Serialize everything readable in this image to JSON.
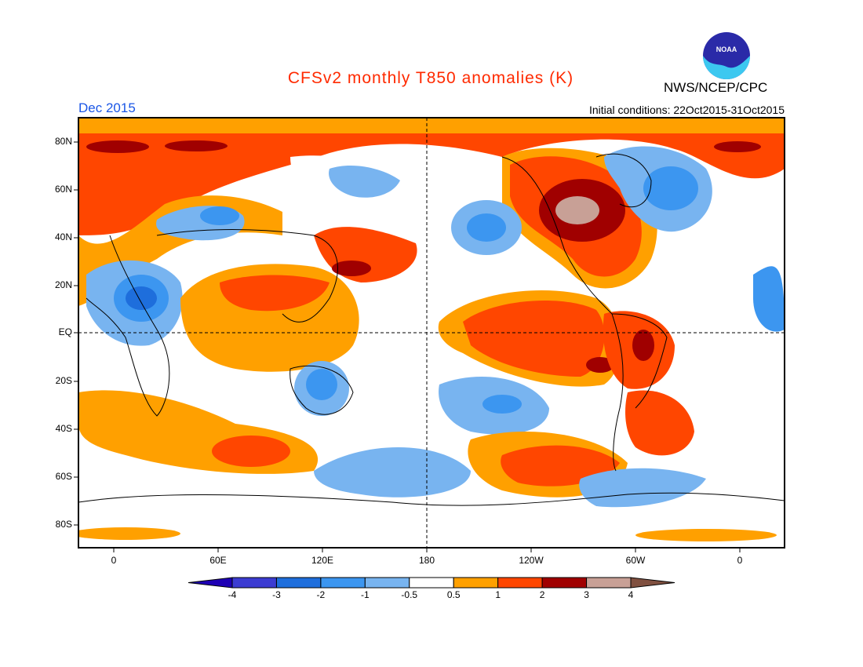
{
  "header": {
    "title": "CFSv2 monthly T850 anomalies (K)",
    "agency": "NWS/NCEP/CPC",
    "valid_month": "Dec 2015",
    "initial_conditions": "Initial conditions: 22Oct2015-31Oct2015",
    "logo_text": "NOAA"
  },
  "axes": {
    "y_ticks": [
      "80N",
      "60N",
      "40N",
      "20N",
      "EQ",
      "20S",
      "40S",
      "60S",
      "80S"
    ],
    "x_ticks": [
      "0",
      "60E",
      "120E",
      "180",
      "120W",
      "60W",
      "0"
    ]
  },
  "colorbar": {
    "labels": [
      "-4",
      "-3",
      "-2",
      "-1",
      "-0.5",
      "0.5",
      "1",
      "2",
      "3",
      "4"
    ],
    "colors": [
      "#1e00b4",
      "#3c3cd2",
      "#1e6edc",
      "#3c96f0",
      "#78b4f0",
      "#ffffff",
      "#ffa000",
      "#ff4600",
      "#a00000",
      "#c8a096",
      "#805040"
    ]
  }
}
